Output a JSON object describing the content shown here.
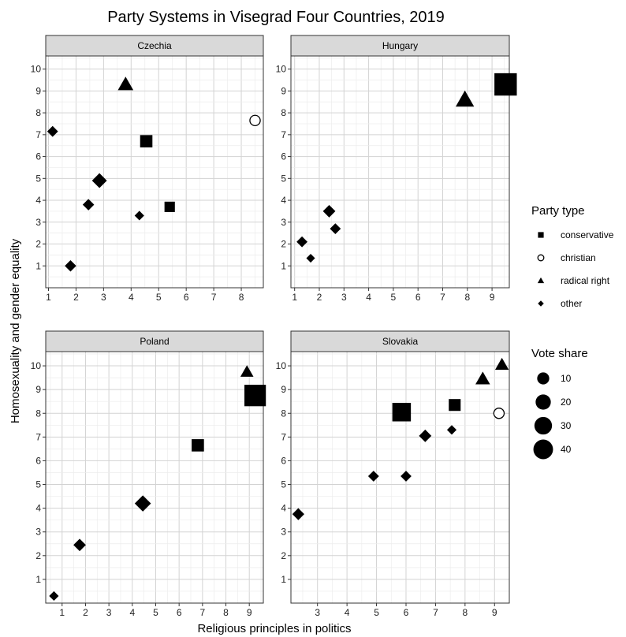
{
  "chart_data": {
    "type": "scatter",
    "title": "Party Systems in Visegrad Four Countries, 2019",
    "xlabel": "Religious principles in politics",
    "ylabel": "Homosexuality and gender equality",
    "ylim": [
      0,
      10.6
    ],
    "y_ticks": [
      1,
      2,
      3,
      4,
      5,
      6,
      7,
      8,
      9,
      10
    ],
    "grid": true,
    "legend_position": "right",
    "legend": {
      "shape_title": "Party type",
      "shapes": [
        {
          "key": "conservative",
          "label": "conservative",
          "shape": "square"
        },
        {
          "key": "christian",
          "label": "christian",
          "shape": "open-circle"
        },
        {
          "key": "radical_right",
          "label": "radical right",
          "shape": "triangle"
        },
        {
          "key": "other",
          "label": "other",
          "shape": "diamond"
        }
      ],
      "size_title": "Vote share",
      "sizes": [
        10,
        20,
        30,
        40
      ]
    },
    "panels": [
      {
        "name": "Czechia",
        "xlim": [
          0.9,
          8.8
        ],
        "x_ticks": [
          1,
          2,
          3,
          4,
          5,
          6,
          7,
          8
        ],
        "points": [
          {
            "x": 1.15,
            "y": 7.15,
            "type": "other",
            "vote_share": 5
          },
          {
            "x": 1.8,
            "y": 1.0,
            "type": "other",
            "vote_share": 6
          },
          {
            "x": 2.45,
            "y": 3.8,
            "type": "other",
            "vote_share": 6
          },
          {
            "x": 2.85,
            "y": 4.9,
            "type": "other",
            "vote_share": 14
          },
          {
            "x": 3.8,
            "y": 9.3,
            "type": "radical_right",
            "vote_share": 12
          },
          {
            "x": 4.3,
            "y": 3.3,
            "type": "other",
            "vote_share": 3
          },
          {
            "x": 4.55,
            "y": 6.7,
            "type": "conservative",
            "vote_share": 9
          },
          {
            "x": 5.4,
            "y": 3.7,
            "type": "conservative",
            "vote_share": 5
          },
          {
            "x": 8.5,
            "y": 7.65,
            "type": "christian",
            "vote_share": 6
          }
        ]
      },
      {
        "name": "Hungary",
        "xlim": [
          0.85,
          9.7
        ],
        "x_ticks": [
          1,
          2,
          3,
          4,
          5,
          6,
          7,
          8,
          9
        ],
        "points": [
          {
            "x": 1.3,
            "y": 2.1,
            "type": "other",
            "vote_share": 5
          },
          {
            "x": 1.65,
            "y": 1.35,
            "type": "other",
            "vote_share": 2
          },
          {
            "x": 2.4,
            "y": 3.5,
            "type": "other",
            "vote_share": 8
          },
          {
            "x": 2.65,
            "y": 2.7,
            "type": "other",
            "vote_share": 5
          },
          {
            "x": 7.9,
            "y": 8.6,
            "type": "radical_right",
            "vote_share": 20
          },
          {
            "x": 9.55,
            "y": 9.3,
            "type": "conservative",
            "vote_share": 49
          }
        ]
      },
      {
        "name": "Poland",
        "xlim": [
          0.3,
          9.6
        ],
        "x_ticks": [
          1,
          2,
          3,
          4,
          5,
          6,
          7,
          8,
          9
        ],
        "points": [
          {
            "x": 0.65,
            "y": 0.3,
            "type": "other",
            "vote_share": 3
          },
          {
            "x": 1.75,
            "y": 2.45,
            "type": "other",
            "vote_share": 8
          },
          {
            "x": 4.45,
            "y": 4.2,
            "type": "other",
            "vote_share": 18
          },
          {
            "x": 6.8,
            "y": 6.65,
            "type": "conservative",
            "vote_share": 9
          },
          {
            "x": 8.9,
            "y": 9.75,
            "type": "radical_right",
            "vote_share": 7
          },
          {
            "x": 9.25,
            "y": 8.75,
            "type": "conservative",
            "vote_share": 44
          }
        ]
      },
      {
        "name": "Slovakia",
        "xlim": [
          2.1,
          9.5
        ],
        "x_ticks": [
          3,
          4,
          5,
          6,
          7,
          8,
          9
        ],
        "points": [
          {
            "x": 2.35,
            "y": 3.75,
            "type": "other",
            "vote_share": 7
          },
          {
            "x": 4.9,
            "y": 5.35,
            "type": "other",
            "vote_share": 5
          },
          {
            "x": 5.85,
            "y": 8.05,
            "type": "conservative",
            "vote_share": 30
          },
          {
            "x": 6.0,
            "y": 5.35,
            "type": "other",
            "vote_share": 5
          },
          {
            "x": 6.65,
            "y": 7.05,
            "type": "other",
            "vote_share": 8
          },
          {
            "x": 7.55,
            "y": 7.3,
            "type": "other",
            "vote_share": 3
          },
          {
            "x": 7.65,
            "y": 8.35,
            "type": "conservative",
            "vote_share": 8
          },
          {
            "x": 8.6,
            "y": 9.45,
            "type": "radical_right",
            "vote_share": 10
          },
          {
            "x": 9.15,
            "y": 8.0,
            "type": "christian",
            "vote_share": 6
          },
          {
            "x": 9.25,
            "y": 10.05,
            "type": "radical_right",
            "vote_share": 8
          }
        ]
      }
    ]
  }
}
